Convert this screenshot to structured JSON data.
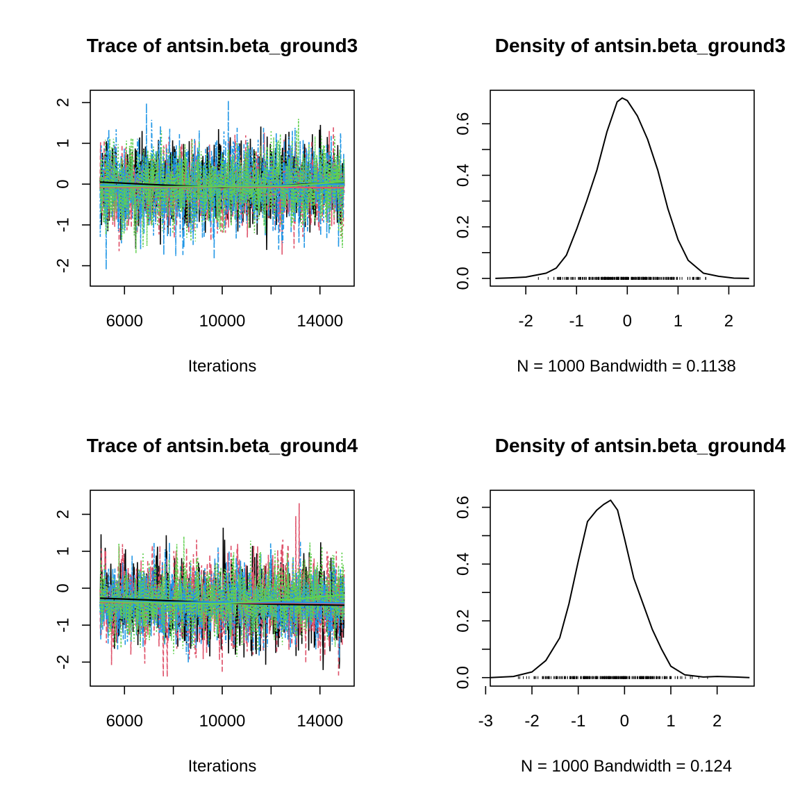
{
  "chart_data": [
    {
      "type": "line",
      "title": "Trace of antsin.beta_ground3",
      "xlabel": "Iterations",
      "ylabel": "",
      "xlim": [
        4600,
        15400
      ],
      "ylim": [
        -2.5,
        2.3
      ],
      "xticks": [
        "6000",
        "10000",
        "14000"
      ],
      "yticks": [
        "-2",
        "-1",
        "0",
        "1",
        "2"
      ],
      "series": [
        {
          "color": "#000000",
          "line_style": "solid",
          "values_range": [
            -1.8,
            1.8
          ],
          "trend": {
            "x": [
              5000,
              7500,
              10000,
              12500,
              15000
            ],
            "y": [
              0.05,
              -0.02,
              -0.08,
              -0.03,
              0.05
            ]
          }
        },
        {
          "color": "#DF536B",
          "line_style": "dashed",
          "values_range": [
            -1.8,
            1.8
          ],
          "trend": {
            "x": [
              5000,
              7500,
              10000,
              12500,
              15000
            ],
            "y": [
              -0.08,
              -0.08,
              -0.07,
              -0.08,
              -0.09
            ]
          }
        },
        {
          "color": "#2297E6",
          "line_style": "dotdash",
          "values_range": [
            -2.3,
            2.05
          ],
          "trend": {
            "x": [
              5000,
              7500,
              10000,
              12500,
              15000
            ],
            "y": [
              -0.02,
              -0.06,
              -0.06,
              -0.03,
              0.0
            ]
          }
        },
        {
          "color": "#61D04F",
          "line_style": "dotted",
          "values_range": [
            -2.3,
            1.6
          ],
          "trend": {
            "x": [
              5000,
              7500,
              10000,
              12500,
              15000
            ],
            "y": [
              -0.06,
              -0.06,
              -0.06,
              -0.05,
              0.06
            ]
          }
        }
      ]
    },
    {
      "type": "line",
      "title": "Density of antsin.beta_ground3",
      "xlabel": "N = 1000   Bandwidth = 0.1138",
      "ylabel": "",
      "xlim": [
        -2.7,
        2.5
      ],
      "ylim": [
        -0.03,
        0.73
      ],
      "xticks": [
        "-2",
        "-1",
        "0",
        "1",
        "2"
      ],
      "yticks": [
        "0.0",
        "0.2",
        "0.4",
        "0.6"
      ],
      "x": [
        -2.6,
        -2.3,
        -2.0,
        -1.6,
        -1.4,
        -1.2,
        -1.0,
        -0.8,
        -0.6,
        -0.4,
        -0.2,
        -0.1,
        0.0,
        0.2,
        0.4,
        0.6,
        0.8,
        1.0,
        1.2,
        1.5,
        1.8,
        2.1,
        2.4
      ],
      "y": [
        0.0,
        0.002,
        0.005,
        0.02,
        0.04,
        0.09,
        0.19,
        0.3,
        0.42,
        0.57,
        0.685,
        0.7,
        0.69,
        0.63,
        0.54,
        0.42,
        0.27,
        0.15,
        0.07,
        0.02,
        0.008,
        0.001,
        0.0
      ],
      "rug_range": [
        -1.8,
        1.8
      ]
    },
    {
      "type": "line",
      "title": "Trace of antsin.beta_ground4",
      "xlabel": "Iterations",
      "ylabel": "",
      "xlim": [
        4600,
        15400
      ],
      "ylim": [
        -2.65,
        2.65
      ],
      "xticks": [
        "6000",
        "10000",
        "14000"
      ],
      "yticks": [
        "-2",
        "-1",
        "0",
        "1",
        "2"
      ],
      "series": [
        {
          "color": "#000000",
          "line_style": "solid",
          "values_range": [
            -2.5,
            1.7
          ],
          "trend": {
            "x": [
              5000,
              7500,
              10000,
              12500,
              15000
            ],
            "y": [
              -0.27,
              -0.33,
              -0.4,
              -0.44,
              -0.46
            ]
          }
        },
        {
          "color": "#DF536B",
          "line_style": "dashed",
          "values_range": [
            -2.4,
            2.3
          ],
          "trend": {
            "x": [
              5000,
              7500,
              10000,
              12500,
              15000
            ],
            "y": [
              -0.38,
              -0.4,
              -0.4,
              -0.4,
              -0.42
            ]
          }
        },
        {
          "color": "#2297E6",
          "line_style": "dotdash",
          "values_range": [
            -2.3,
            1.5
          ],
          "trend": {
            "x": [
              5000,
              7500,
              10000,
              12500,
              15000
            ],
            "y": [
              -0.34,
              -0.38,
              -0.38,
              -0.38,
              -0.4
            ]
          }
        },
        {
          "color": "#61D04F",
          "line_style": "dotted",
          "values_range": [
            -2.5,
            1.4
          ],
          "trend": {
            "x": [
              5000,
              7500,
              10000,
              12500,
              15000
            ],
            "y": [
              -0.36,
              -0.4,
              -0.42,
              -0.32,
              -0.18
            ]
          }
        }
      ]
    },
    {
      "type": "line",
      "title": "Density of antsin.beta_ground4",
      "xlabel": "N = 1000   Bandwidth = 0.124",
      "ylabel": "",
      "xlim": [
        -2.9,
        2.8
      ],
      "ylim": [
        -0.03,
        0.66
      ],
      "xticks": [
        "-3",
        "-2",
        "-1",
        "0",
        "1",
        "2"
      ],
      "yticks": [
        "0.0",
        "0.2",
        "0.4",
        "0.6"
      ],
      "x": [
        -2.9,
        -2.4,
        -2.0,
        -1.7,
        -1.4,
        -1.2,
        -1.0,
        -0.8,
        -0.6,
        -0.45,
        -0.3,
        -0.15,
        0.0,
        0.2,
        0.4,
        0.6,
        0.8,
        1.0,
        1.3,
        1.7,
        2.0,
        2.4,
        2.7
      ],
      "y": [
        0.0,
        0.004,
        0.02,
        0.06,
        0.14,
        0.26,
        0.41,
        0.55,
        0.59,
        0.61,
        0.625,
        0.59,
        0.49,
        0.35,
        0.26,
        0.17,
        0.1,
        0.04,
        0.01,
        0.002,
        0.004,
        0.002,
        0.0
      ],
      "rug_range": [
        -2.6,
        1.8
      ]
    }
  ]
}
